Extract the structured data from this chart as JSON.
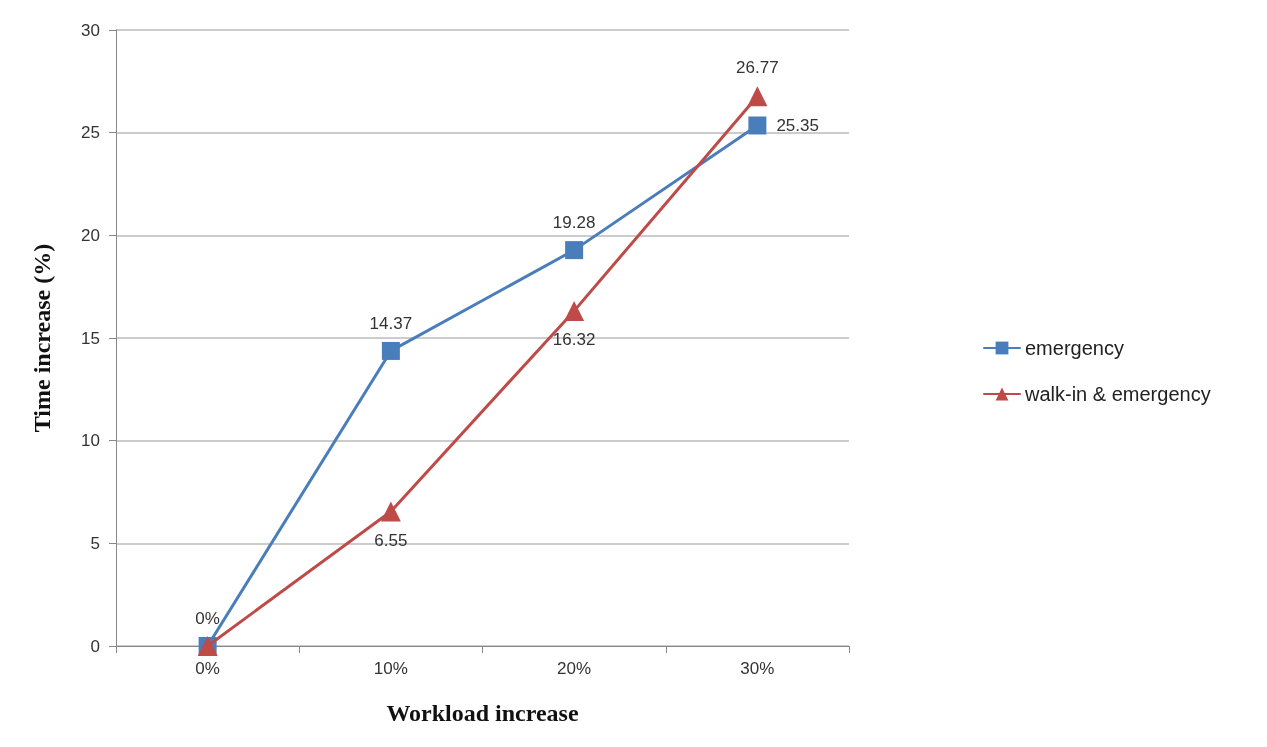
{
  "chart_data": {
    "type": "line",
    "xlabel": "Workload increase",
    "ylabel": "Time increase (%)",
    "categories": [
      "0%",
      "10%",
      "20%",
      "30%"
    ],
    "series": [
      {
        "name": "emergency",
        "color": "#4a7ebb",
        "marker": "square",
        "values": [
          0,
          14.37,
          19.28,
          25.35
        ],
        "value_labels": [
          "0%",
          "14.37",
          "19.28",
          "25.35"
        ]
      },
      {
        "name": "walk-in & emergency",
        "color": "#be4b48",
        "marker": "triangle",
        "values": [
          0,
          6.55,
          16.32,
          26.77
        ],
        "value_labels": [
          null,
          "6.55",
          "16.32",
          "26.77"
        ]
      }
    ],
    "ylim": [
      0,
      30
    ],
    "yticks": [
      0,
      5,
      10,
      15,
      20,
      25,
      30
    ],
    "grid": "y",
    "legend": "right",
    "line_style": "solid"
  }
}
